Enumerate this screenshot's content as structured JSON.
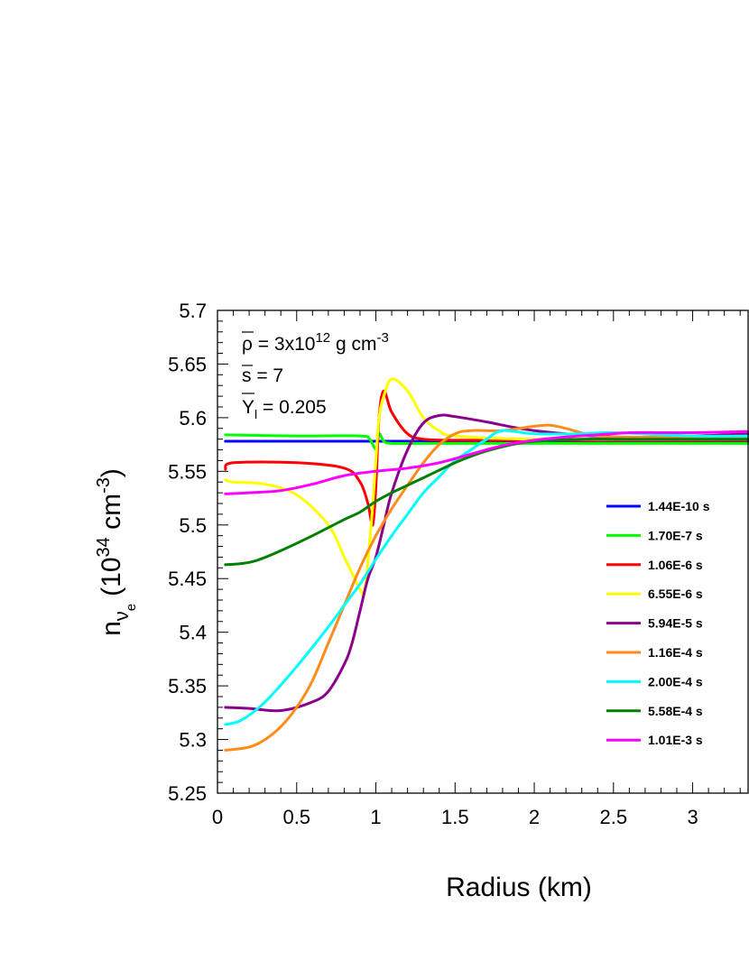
{
  "chart_data": {
    "type": "line",
    "xlabel": "Radius (km)",
    "ylabel": {
      "main": "n",
      "sub1": "ν",
      "sub2": "e",
      "unit_open": "(10",
      "unit_exp": "34",
      "unit_mid": " cm",
      "unit_exp2": "-3",
      "unit_close": ")"
    },
    "xlim": [
      0,
      3.35
    ],
    "ylim": [
      5.25,
      5.7
    ],
    "x_ticks": [
      "0",
      "0.5",
      "1",
      "1.5",
      "2",
      "2.5",
      "3"
    ],
    "y_ticks": [
      "5.25",
      "5.3",
      "5.35",
      "5.4",
      "5.45",
      "5.5",
      "5.55",
      "5.6",
      "5.65",
      "5.7"
    ],
    "annotations": {
      "rho_symbol": "ρ",
      "rho_text": " = 3x10",
      "rho_exp": "12",
      "rho_unit": " g cm",
      "rho_unit_exp": "-3",
      "s_symbol": "s",
      "s_text": " = 7",
      "y_symbol": "Y",
      "y_sub": "l",
      "y_text": " = 0.205"
    },
    "legend_position": "right",
    "series": [
      {
        "name": "1.44E-10 s",
        "color": "#0000ff",
        "x": [
          0.05,
          0.5,
          1.0,
          1.5,
          2.0,
          2.5,
          3.0,
          3.35
        ],
        "y": [
          5.578,
          5.578,
          5.578,
          5.578,
          5.578,
          5.578,
          5.578,
          5.578
        ]
      },
      {
        "name": "1.70E-7 s",
        "color": "#00ff00",
        "x": [
          0.05,
          0.5,
          0.9,
          0.96,
          1.0,
          1.02,
          1.05,
          1.1,
          1.3,
          2.0,
          3.35
        ],
        "y": [
          5.584,
          5.583,
          5.583,
          5.58,
          5.571,
          5.585,
          5.578,
          5.576,
          5.576,
          5.576,
          5.576
        ]
      },
      {
        "name": "1.06E-6 s",
        "color": "#ff0000",
        "x": [
          0.05,
          0.1,
          0.5,
          0.8,
          0.9,
          0.95,
          0.98,
          1.0,
          1.02,
          1.05,
          1.1,
          1.2,
          1.3,
          1.5,
          2.0,
          3.0,
          3.35
        ],
        "y": [
          5.552,
          5.558,
          5.558,
          5.553,
          5.54,
          5.52,
          5.5,
          5.535,
          5.6,
          5.625,
          5.605,
          5.585,
          5.58,
          5.579,
          5.579,
          5.579,
          5.579
        ]
      },
      {
        "name": "6.55E-6 s",
        "color": "#ffff00",
        "x": [
          0.05,
          0.1,
          0.3,
          0.5,
          0.7,
          0.8,
          0.85,
          0.9,
          0.93,
          0.97,
          1.0,
          1.02,
          1.05,
          1.1,
          1.2,
          1.3,
          1.4,
          1.5,
          2.0,
          3.35
        ],
        "y": [
          5.542,
          5.54,
          5.538,
          5.528,
          5.5,
          5.47,
          5.455,
          5.44,
          5.44,
          5.5,
          5.56,
          5.6,
          5.62,
          5.636,
          5.625,
          5.6,
          5.588,
          5.583,
          5.58,
          5.58
        ]
      },
      {
        "name": "5.94E-5 s",
        "color": "#8b008b",
        "x": [
          0.05,
          0.2,
          0.4,
          0.6,
          0.7,
          0.8,
          0.85,
          0.9,
          0.95,
          1.0,
          1.05,
          1.1,
          1.2,
          1.3,
          1.4,
          1.5,
          1.7,
          2.0,
          2.5,
          3.0,
          3.35
        ],
        "y": [
          5.33,
          5.329,
          5.327,
          5.335,
          5.345,
          5.37,
          5.39,
          5.42,
          5.45,
          5.47,
          5.5,
          5.53,
          5.57,
          5.595,
          5.602,
          5.601,
          5.596,
          5.588,
          5.582,
          5.583,
          5.585
        ]
      },
      {
        "name": "1.16E-4 s",
        "color": "#ff8c1a",
        "x": [
          0.05,
          0.2,
          0.3,
          0.4,
          0.5,
          0.6,
          0.7,
          0.8,
          0.9,
          1.0,
          1.1,
          1.2,
          1.3,
          1.4,
          1.5,
          1.6,
          1.8,
          2.0,
          2.1,
          2.2,
          2.35,
          2.5,
          3.0,
          3.35
        ],
        "y": [
          5.29,
          5.293,
          5.3,
          5.312,
          5.33,
          5.355,
          5.39,
          5.425,
          5.46,
          5.49,
          5.515,
          5.537,
          5.558,
          5.575,
          5.585,
          5.588,
          5.588,
          5.592,
          5.593,
          5.59,
          5.584,
          5.582,
          5.582,
          5.582
        ]
      },
      {
        "name": "2.00E-4 s",
        "color": "#00ffff",
        "x": [
          0.05,
          0.15,
          0.3,
          0.5,
          0.7,
          0.8,
          0.9,
          1.0,
          1.1,
          1.2,
          1.3,
          1.4,
          1.5,
          1.6,
          1.7,
          1.8,
          2.0,
          2.3,
          2.5,
          3.0,
          3.35
        ],
        "y": [
          5.314,
          5.318,
          5.335,
          5.368,
          5.405,
          5.425,
          5.445,
          5.468,
          5.49,
          5.51,
          5.53,
          5.545,
          5.56,
          5.57,
          5.58,
          5.588,
          5.585,
          5.585,
          5.586,
          5.583,
          5.583
        ]
      },
      {
        "name": "5.58E-4 s",
        "color": "#008000",
        "x": [
          0.05,
          0.15,
          0.25,
          0.4,
          0.6,
          0.8,
          0.9,
          1.0,
          1.1,
          1.2,
          1.3,
          1.4,
          1.5,
          1.6,
          1.7,
          1.8,
          1.9,
          2.0,
          2.3,
          2.6,
          3.0,
          3.35
        ],
        "y": [
          5.463,
          5.464,
          5.467,
          5.476,
          5.49,
          5.505,
          5.512,
          5.522,
          5.53,
          5.537,
          5.544,
          5.551,
          5.558,
          5.564,
          5.569,
          5.573,
          5.576,
          5.578,
          5.58,
          5.58,
          5.58,
          5.58
        ]
      },
      {
        "name": "1.01E-3 s",
        "color": "#ff00ff",
        "x": [
          0.05,
          0.2,
          0.4,
          0.6,
          0.8,
          1.0,
          1.2,
          1.4,
          1.6,
          1.8,
          2.0,
          2.2,
          2.4,
          2.6,
          2.8,
          3.0,
          3.35
        ],
        "y": [
          5.529,
          5.53,
          5.532,
          5.538,
          5.546,
          5.55,
          5.553,
          5.558,
          5.566,
          5.574,
          5.579,
          5.582,
          5.584,
          5.586,
          5.586,
          5.586,
          5.587
        ]
      }
    ]
  }
}
